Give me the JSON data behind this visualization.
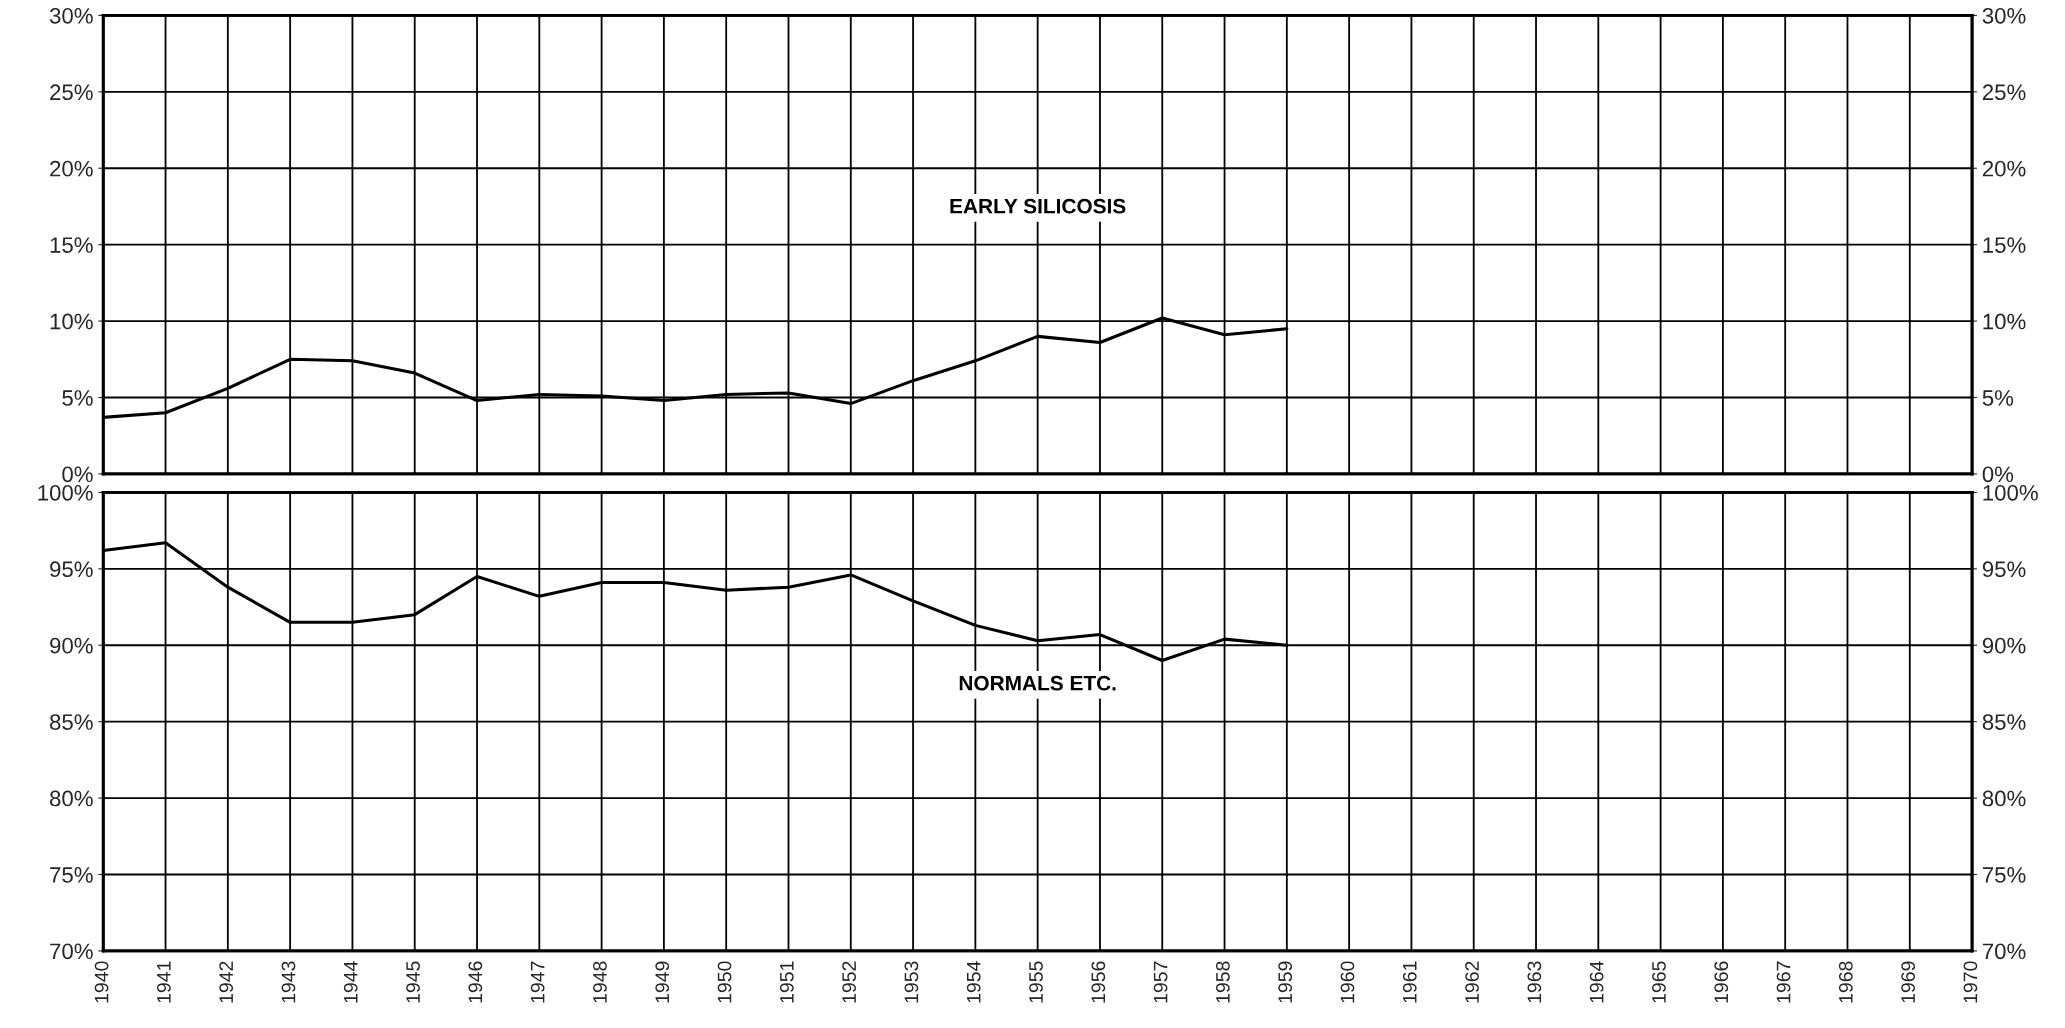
{
  "chart_data": [
    {
      "type": "line",
      "x": [
        1940,
        1941,
        1942,
        1943,
        1944,
        1945,
        1946,
        1947,
        1948,
        1949,
        1950,
        1951,
        1952,
        1953,
        1954,
        1955,
        1956,
        1957,
        1958,
        1959
      ],
      "series": [
        {
          "name": "EARLY SILICOSIS",
          "color": "#000000",
          "values": [
            3.7,
            4.0,
            5.6,
            7.5,
            7.4,
            6.6,
            4.8,
            5.2,
            5.1,
            4.8,
            5.2,
            5.3,
            4.6,
            6.1,
            7.4,
            9.0,
            8.6,
            10.2,
            9.1,
            9.5
          ]
        }
      ],
      "xlim": [
        1940,
        1970
      ],
      "xticks": [
        1940,
        1941,
        1942,
        1943,
        1944,
        1945,
        1946,
        1947,
        1948,
        1949,
        1950,
        1951,
        1952,
        1953,
        1954,
        1955,
        1956,
        1957,
        1958,
        1959,
        1960,
        1961,
        1962,
        1963,
        1964,
        1965,
        1966,
        1967,
        1968,
        1969,
        1970
      ],
      "ylim": [
        0,
        30
      ],
      "yticks": [
        {
          "value": 0,
          "label": "0%"
        },
        {
          "value": 5,
          "label": "5%"
        },
        {
          "value": 10,
          "label": "10%"
        },
        {
          "value": 15,
          "label": "15%"
        },
        {
          "value": 20,
          "label": "20%"
        },
        {
          "value": 25,
          "label": "25%"
        },
        {
          "value": 30,
          "label": "30%"
        }
      ],
      "y2lim": [
        0,
        30
      ],
      "y2ticks": [
        {
          "value": 0,
          "label": "0%"
        },
        {
          "value": 5,
          "label": "5%"
        },
        {
          "value": 10,
          "label": "10%"
        },
        {
          "value": 15,
          "label": "15%"
        },
        {
          "value": 20,
          "label": "20%"
        },
        {
          "value": 25,
          "label": "25%"
        },
        {
          "value": 30,
          "label": "30%"
        }
      ],
      "tick_labels": "y",
      "grid": true,
      "legend": false,
      "marker": "none",
      "line_style": "solid"
    },
    {
      "type": "line",
      "x": [
        1940,
        1941,
        1942,
        1943,
        1944,
        1945,
        1946,
        1947,
        1948,
        1949,
        1950,
        1951,
        1952,
        1953,
        1954,
        1955,
        1956,
        1957,
        1958,
        1959
      ],
      "series": [
        {
          "name": "NORMALS ETC.",
          "color": "#000000",
          "values": [
            96.2,
            96.7,
            93.8,
            91.5,
            91.5,
            92.0,
            94.5,
            93.2,
            94.1,
            94.1,
            93.6,
            93.8,
            94.6,
            92.9,
            91.3,
            90.3,
            90.7,
            89.0,
            90.4,
            90.0
          ]
        }
      ],
      "xlim": [
        1940,
        1970
      ],
      "xticks": [
        1940,
        1941,
        1942,
        1943,
        1944,
        1945,
        1946,
        1947,
        1948,
        1949,
        1950,
        1951,
        1952,
        1953,
        1954,
        1955,
        1956,
        1957,
        1958,
        1959,
        1960,
        1961,
        1962,
        1963,
        1964,
        1965,
        1966,
        1967,
        1968,
        1969,
        1970
      ],
      "ylim": [
        70,
        100
      ],
      "yticks": [
        {
          "value": 70,
          "label": "70%"
        },
        {
          "value": 75,
          "label": "75%"
        },
        {
          "value": 80,
          "label": "80%"
        },
        {
          "value": 85,
          "label": "85%"
        },
        {
          "value": 90,
          "label": "90%"
        },
        {
          "value": 95,
          "label": "95%"
        },
        {
          "value": 100,
          "label": "100%"
        }
      ],
      "y2lim": [
        70,
        100
      ],
      "y2ticks": [
        {
          "value": 70,
          "label": "70%"
        },
        {
          "value": 75,
          "label": "75%"
        },
        {
          "value": 80,
          "label": "80%"
        },
        {
          "value": 85,
          "label": "85%"
        },
        {
          "value": 90,
          "label": "90%"
        },
        {
          "value": 95,
          "label": "95%"
        },
        {
          "value": 100,
          "label": "100%"
        }
      ],
      "grid": true,
      "legend": false,
      "marker": "none",
      "line_style": "solid"
    }
  ]
}
